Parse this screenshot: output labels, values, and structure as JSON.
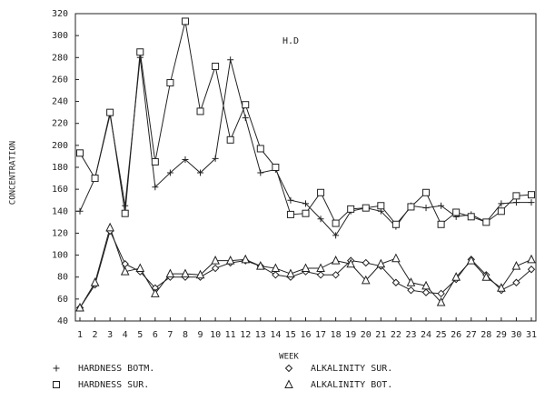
{
  "chart_data": {
    "type": "line",
    "annotation": "H.D",
    "x_label": "WEEK",
    "y_label": "CONCENTRATION",
    "categories": [
      "1",
      "2",
      "3",
      "4",
      "5",
      "6",
      "7",
      "8",
      "9",
      "10",
      "11",
      "12",
      "13",
      "14",
      "15",
      "16",
      "17",
      "18",
      "19",
      "20",
      "21",
      "22",
      "23",
      "24",
      "25",
      "26",
      "27",
      "28",
      "29",
      "30",
      "31"
    ],
    "ylim": [
      40,
      320
    ],
    "yticks": [
      40,
      60,
      80,
      100,
      120,
      140,
      160,
      180,
      200,
      220,
      240,
      260,
      280,
      300,
      320
    ],
    "grid": false,
    "legend": "bottom",
    "series": [
      {
        "name": "HARDNESS BOTM.",
        "color": "#222222",
        "marker": "plus",
        "values": [
          140,
          170,
          228,
          145,
          280,
          162,
          175,
          187,
          175,
          188,
          278,
          225,
          175,
          178,
          150,
          147,
          133,
          118,
          140,
          143,
          140,
          126,
          145,
          143,
          145,
          135,
          137,
          130,
          147,
          148,
          148
        ]
      },
      {
        "name": "HARDNESS SUR.",
        "color": "#222222",
        "marker": "square",
        "values": [
          193,
          170,
          230,
          138,
          285,
          185,
          257,
          313,
          231,
          272,
          205,
          237,
          197,
          180,
          137,
          138,
          157,
          129,
          142,
          143,
          145,
          128,
          144,
          157,
          128,
          139,
          135,
          130,
          140,
          154,
          155
        ]
      },
      {
        "name": "ALKALINITY SUR.",
        "color": "#222222",
        "marker": "diamond",
        "values": [
          52,
          73,
          122,
          92,
          85,
          70,
          80,
          80,
          80,
          88,
          93,
          95,
          90,
          82,
          80,
          85,
          82,
          82,
          95,
          93,
          90,
          75,
          68,
          66,
          65,
          78,
          96,
          82,
          68,
          75,
          87
        ]
      },
      {
        "name": "ALKALINITY BOT.",
        "color": "#222222",
        "marker": "triangle",
        "values": [
          52,
          75,
          125,
          85,
          88,
          65,
          83,
          83,
          82,
          95,
          95,
          96,
          90,
          88,
          83,
          88,
          88,
          95,
          92,
          77,
          92,
          97,
          75,
          72,
          57,
          80,
          95,
          80,
          70,
          90,
          96
        ]
      }
    ]
  }
}
